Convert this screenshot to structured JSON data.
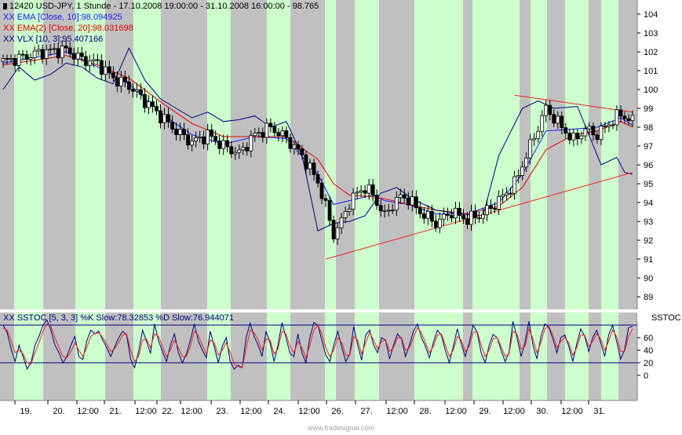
{
  "header": {
    "symbol_line": "12420  USD-JPY, 1 Stunde - 17.10.2008 19:00:00 - 31.10.2008 16:00:00 - 98.765",
    "ema_line": "EMA [Close, 10]:98.094925",
    "ema2_line": "EMA(2) [Close, 20]:98.031698",
    "vlx_line": "VLX [10, 3]:95.407166",
    "stoch_line": "SSTOC [5, 3, 3] %K Slow:78.32853 %D Slow:76.944071",
    "stoch_tag": "SSTOC",
    "watermark": "www.tradesignal.com",
    "marker": "XX"
  },
  "colors": {
    "background": "#c0c0c0",
    "session": "#ccffcc",
    "candles": "#000000",
    "ema10": "#1a1aff",
    "ema20": "#e00000",
    "vlx": "#000080",
    "trendline": "#ee2222",
    "stoch_k": "#000080",
    "stoch_d": "#ee2222"
  },
  "chart_data": [
    {
      "type": "candlestick",
      "title": "USD-JPY, 1 Stunde",
      "ylim": [
        88.5,
        105
      ],
      "y_ticks": [
        89,
        90,
        91,
        92,
        93,
        94,
        95,
        96,
        97,
        98,
        99,
        100,
        101,
        102,
        103,
        104
      ],
      "x_ticks": [
        "19.",
        "20.",
        "12:00",
        "21.",
        "12:00",
        "22.",
        "12:00",
        "23.",
        "12:00",
        "24.",
        "12:00",
        "26.",
        "27.",
        "12:00",
        "28.",
        "12:00",
        "29.",
        "12:00",
        "30.",
        "12:00",
        "31."
      ],
      "grid": false,
      "series": [
        {
          "name": "USD-JPY",
          "kind": "close",
          "x": [
            0,
            5,
            10,
            16,
            20,
            24,
            28,
            32,
            38,
            41,
            44,
            48,
            52,
            56,
            60,
            64,
            68,
            72,
            76,
            80,
            82,
            84,
            86,
            88,
            90,
            92,
            94,
            95,
            97,
            99,
            101,
            103,
            106,
            110,
            114,
            118,
            122,
            126,
            130,
            134,
            138,
            142,
            145,
            148,
            151,
            154,
            157,
            160
          ],
          "values": [
            101.5,
            101.7,
            102.0,
            102.1,
            101.6,
            101.4,
            100.6,
            100.2,
            99.0,
            98.4,
            97.8,
            97.2,
            97.6,
            97.0,
            96.6,
            97.6,
            98.0,
            97.4,
            96.5,
            95.1,
            93.8,
            92.3,
            93.0,
            94.0,
            94.5,
            94.8,
            94.4,
            94.0,
            93.3,
            93.9,
            94.3,
            94.2,
            93.5,
            92.9,
            93.5,
            93.1,
            93.4,
            94.1,
            95.0,
            97.0,
            99.0,
            98.0,
            97.3,
            97.9,
            97.6,
            98.2,
            98.7,
            98.3
          ]
        },
        {
          "name": "EMA [Close, 10]",
          "kind": "line",
          "x": [
            0,
            16,
            24,
            32,
            41,
            48,
            56,
            64,
            72,
            80,
            84,
            88,
            94,
            97,
            103,
            110,
            118,
            126,
            132,
            138,
            145,
            151,
            157,
            160
          ],
          "values": [
            101.4,
            102.0,
            101.2,
            100.3,
            98.6,
            97.6,
            97.1,
            97.5,
            97.4,
            95.5,
            93.9,
            94.1,
            94.4,
            94.1,
            93.9,
            93.4,
            93.4,
            94.0,
            95.5,
            97.8,
            97.9,
            98.0,
            98.5,
            98.1
          ]
        },
        {
          "name": "EMA(2) [Close, 20]",
          "kind": "line",
          "x": [
            0,
            16,
            24,
            32,
            41,
            48,
            56,
            64,
            72,
            80,
            84,
            88,
            94,
            97,
            103,
            110,
            118,
            126,
            132,
            138,
            145,
            151,
            157,
            160
          ],
          "values": [
            101.3,
            101.8,
            101.3,
            100.6,
            99.2,
            98.2,
            97.5,
            97.5,
            97.5,
            96.3,
            95.0,
            94.4,
            94.3,
            94.2,
            93.9,
            93.6,
            93.4,
            93.8,
            94.8,
            96.8,
            97.6,
            97.8,
            98.3,
            98.0
          ]
        },
        {
          "name": "VLX [10, 3]",
          "kind": "line",
          "x": [
            0,
            4,
            8,
            12,
            16,
            20,
            24,
            28,
            32,
            36,
            40,
            44,
            48,
            52,
            56,
            60,
            64,
            68,
            72,
            76,
            80,
            84,
            88,
            92,
            96,
            100,
            104,
            110,
            116,
            122,
            126,
            132,
            136,
            140,
            146,
            152,
            156,
            158,
            160
          ],
          "values": [
            100.0,
            101.2,
            100.5,
            100.8,
            101.4,
            101.2,
            100.6,
            100.3,
            102.2,
            100.5,
            99.5,
            99.0,
            98.5,
            98.8,
            98.3,
            98.4,
            98.6,
            98.0,
            98.3,
            96.5,
            92.5,
            92.9,
            93.0,
            93.3,
            94.5,
            94.8,
            94.2,
            93.6,
            93.4,
            93.3,
            96.5,
            99.0,
            99.4,
            99.0,
            99.1,
            96.0,
            96.4,
            95.6,
            95.5
          ]
        },
        {
          "name": "Trendline upper",
          "kind": "trendline",
          "x": [
            130,
            160
          ],
          "values": [
            99.7,
            98.8
          ]
        },
        {
          "name": "Trendline lower",
          "kind": "trendline",
          "x": [
            82,
            160
          ],
          "values": [
            91.0,
            95.6
          ]
        }
      ]
    },
    {
      "type": "line",
      "title": "SSTOC [5, 3, 3]",
      "ylim": [
        0,
        100
      ],
      "y_ticks": [
        0,
        20,
        40,
        60
      ],
      "reference_lines": [
        20,
        80
      ],
      "series": [
        {
          "name": "%K Slow",
          "values": [
            80,
            68,
            42,
            22,
            48,
            30,
            10,
            20,
            48,
            62,
            80,
            88,
            72,
            48,
            36,
            20,
            30,
            48,
            62,
            30,
            25,
            55,
            72,
            66,
            70,
            56,
            44,
            30,
            45,
            60,
            70,
            64,
            26,
            12,
            38,
            72,
            54,
            35,
            82,
            55,
            38,
            22,
            48,
            66,
            36,
            20,
            34,
            56,
            82,
            55,
            40,
            28,
            70,
            46,
            20,
            46,
            60,
            22,
            10,
            16,
            12,
            60,
            83,
            62,
            48,
            30,
            70,
            52,
            22,
            48,
            84,
            60,
            35,
            30,
            66,
            36,
            20,
            60,
            84,
            80,
            56,
            32,
            22,
            48,
            70,
            45,
            22,
            34,
            78,
            48,
            24,
            64,
            72,
            48,
            36,
            60,
            56,
            26,
            48,
            66,
            58,
            30,
            48,
            70,
            82,
            60,
            46,
            28,
            52,
            72,
            64,
            40,
            20,
            46,
            74,
            50,
            30,
            52,
            80,
            68,
            36,
            20,
            48,
            65,
            60,
            40,
            22,
            36,
            86,
            60,
            30,
            52,
            86,
            48,
            26,
            62,
            82,
            76,
            58,
            36,
            60,
            64,
            46,
            22,
            50,
            74,
            62,
            38,
            60,
            72,
            52,
            30,
            64,
            80,
            54,
            26,
            40,
            76,
            78
          ]
        },
        {
          "name": "%D Slow",
          "values": [
            75,
            72,
            55,
            36,
            40,
            34,
            20,
            18,
            36,
            52,
            70,
            82,
            78,
            60,
            44,
            30,
            28,
            38,
            52,
            40,
            30,
            44,
            62,
            66,
            68,
            60,
            50,
            38,
            42,
            52,
            64,
            66,
            40,
            22,
            30,
            56,
            58,
            44,
            66,
            62,
            46,
            30,
            40,
            56,
            44,
            30,
            30,
            46,
            70,
            64,
            48,
            34,
            56,
            52,
            32,
            40,
            52,
            36,
            18,
            14,
            12,
            42,
            72,
            68,
            56,
            40,
            58,
            56,
            34,
            42,
            70,
            66,
            46,
            36,
            54,
            44,
            28,
            48,
            72,
            80,
            66,
            44,
            30,
            40,
            60,
            52,
            32,
            32,
            62,
            56,
            34,
            52,
            68,
            56,
            42,
            54,
            56,
            38,
            44,
            60,
            60,
            40,
            44,
            60,
            76,
            68,
            52,
            36,
            46,
            64,
            66,
            48,
            30,
            40,
            62,
            56,
            38,
            46,
            68,
            70,
            48,
            30,
            40,
            58,
            60,
            46,
            30,
            34,
            70,
            66,
            42,
            46,
            74,
            58,
            36,
            52,
            74,
            78,
            64,
            44,
            54,
            60,
            52,
            32,
            44,
            64,
            64,
            46,
            54,
            66,
            58,
            40,
            54,
            72,
            62,
            38,
            38,
            62,
            74
          ]
        }
      ]
    }
  ]
}
